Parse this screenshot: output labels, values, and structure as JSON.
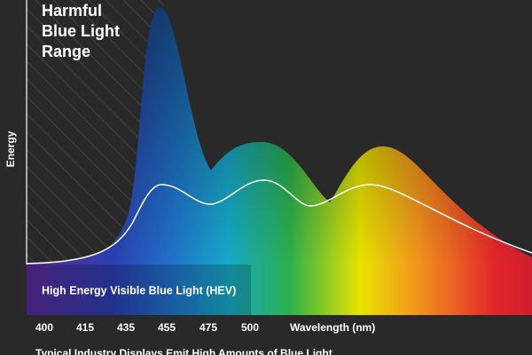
{
  "title_lines": [
    "Harmful",
    "Blue Light",
    "Range"
  ],
  "y_axis_label": "Energy",
  "band_label": "High Energy Visible Blue Light (HEV)",
  "x_ticks": [
    "400",
    "415",
    "435",
    "455",
    "475",
    "500"
  ],
  "x_axis_label": "Wavelength (nm)",
  "caption": "Typical Industry Displays Emit High Amounts of Blue Light"
}
